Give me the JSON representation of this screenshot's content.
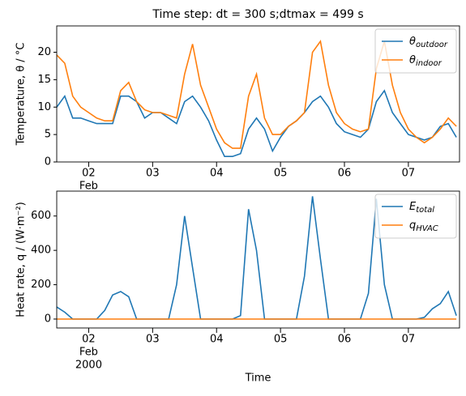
{
  "chart_data": [
    {
      "type": "line",
      "title": "Time step: dt = 300 s;dtmax = 499 s",
      "ylabel": "Temperature, θ / °C",
      "x_month_label": "Feb",
      "x": [
        1.5,
        1.625,
        1.75,
        1.875,
        2.0,
        2.125,
        2.25,
        2.375,
        2.5,
        2.625,
        2.75,
        2.875,
        3.0,
        3.125,
        3.25,
        3.375,
        3.5,
        3.625,
        3.75,
        3.875,
        4.0,
        4.125,
        4.25,
        4.375,
        4.5,
        4.625,
        4.75,
        4.875,
        5.0,
        5.125,
        5.25,
        5.375,
        5.5,
        5.625,
        5.75,
        5.875,
        6.0,
        6.125,
        6.25,
        6.375,
        6.5,
        6.625,
        6.75,
        6.875,
        7.0,
        7.125,
        7.25,
        7.375,
        7.5,
        7.625,
        7.75
      ],
      "series": [
        {
          "name": "θoutdoor",
          "color": "#1f77b4",
          "values": [
            10,
            12,
            8,
            8,
            7.5,
            7,
            7,
            7,
            12,
            12,
            11,
            8,
            9,
            9,
            8,
            7,
            11,
            12,
            10,
            7.5,
            4,
            1,
            1,
            1.5,
            6,
            8,
            6,
            2,
            4.5,
            6.5,
            7.5,
            9,
            11,
            12,
            10,
            7,
            5.5,
            5,
            4.5,
            6,
            11,
            13,
            9,
            7,
            5,
            4.5,
            4,
            4.5,
            6.5,
            7,
            4.5
          ]
        },
        {
          "name": "θindoor",
          "color": "#ff7f0e",
          "values": [
            19.5,
            18,
            12,
            10,
            9,
            8,
            7.5,
            7.5,
            13,
            14.5,
            11,
            9.5,
            9,
            9,
            8.5,
            8,
            16,
            21.5,
            14,
            10,
            6,
            3.5,
            2.5,
            2.5,
            12,
            16,
            8,
            5,
            5,
            6.5,
            7.5,
            9,
            20,
            22,
            14,
            9,
            7,
            6,
            5.5,
            6,
            17,
            22,
            14,
            9,
            6,
            4.5,
            3.5,
            4.5,
            6,
            8,
            6.5
          ]
        }
      ],
      "xlim": [
        1.5,
        7.8
      ],
      "ylim": [
        0,
        24.8
      ],
      "xticks": [
        {
          "value": 2,
          "label": "02"
        },
        {
          "value": 3,
          "label": "03"
        },
        {
          "value": 4,
          "label": "04"
        },
        {
          "value": 5,
          "label": "05"
        },
        {
          "value": 6,
          "label": "06"
        },
        {
          "value": 7,
          "label": "07"
        }
      ],
      "yticks": [
        0,
        5,
        10,
        15,
        20
      ],
      "legend": "upper right"
    },
    {
      "type": "line",
      "ylabel": "Heat rate, q / (W·m⁻²)",
      "xlabel": "Time",
      "x_month_label": "Feb",
      "x_year_label": "2000",
      "x": [
        1.5,
        1.625,
        1.75,
        1.875,
        2.0,
        2.125,
        2.25,
        2.375,
        2.5,
        2.625,
        2.75,
        2.875,
        3.0,
        3.125,
        3.25,
        3.375,
        3.5,
        3.625,
        3.75,
        3.875,
        4.0,
        4.125,
        4.25,
        4.375,
        4.5,
        4.625,
        4.75,
        4.875,
        5.0,
        5.125,
        5.25,
        5.375,
        5.5,
        5.625,
        5.75,
        5.875,
        6.0,
        6.125,
        6.25,
        6.375,
        6.5,
        6.625,
        6.75,
        6.875,
        7.0,
        7.125,
        7.25,
        7.375,
        7.5,
        7.625,
        7.75
      ],
      "series": [
        {
          "name": "Etotal",
          "color": "#1f77b4",
          "values": [
            70,
            40,
            0,
            0,
            0,
            0,
            50,
            140,
            160,
            130,
            0,
            0,
            0,
            0,
            0,
            200,
            600,
            300,
            0,
            0,
            0,
            0,
            0,
            20,
            640,
            400,
            0,
            0,
            0,
            0,
            0,
            250,
            715,
            350,
            0,
            0,
            0,
            0,
            0,
            150,
            700,
            200,
            0,
            0,
            0,
            0,
            10,
            60,
            90,
            160,
            20
          ]
        },
        {
          "name": "qHVAC",
          "color": "#ff7f0e",
          "values": [
            0,
            0,
            0,
            0,
            0,
            0,
            0,
            0,
            0,
            0,
            0,
            0,
            0,
            0,
            0,
            0,
            0,
            0,
            0,
            0,
            0,
            0,
            0,
            0,
            0,
            0,
            0,
            0,
            0,
            0,
            0,
            0,
            0,
            0,
            0,
            0,
            0,
            0,
            0,
            0,
            0,
            0,
            0,
            0,
            0,
            0,
            0,
            0,
            0,
            0,
            0
          ]
        }
      ],
      "xlim": [
        1.5,
        7.8
      ],
      "ylim": [
        -52,
        745
      ],
      "xticks": [
        {
          "value": 2,
          "label": "02"
        },
        {
          "value": 3,
          "label": "03"
        },
        {
          "value": 4,
          "label": "04"
        },
        {
          "value": 5,
          "label": "05"
        },
        {
          "value": 6,
          "label": "06"
        },
        {
          "value": 7,
          "label": "07"
        }
      ],
      "yticks": [
        0,
        200,
        400,
        600
      ],
      "legend": "upper right"
    }
  ]
}
